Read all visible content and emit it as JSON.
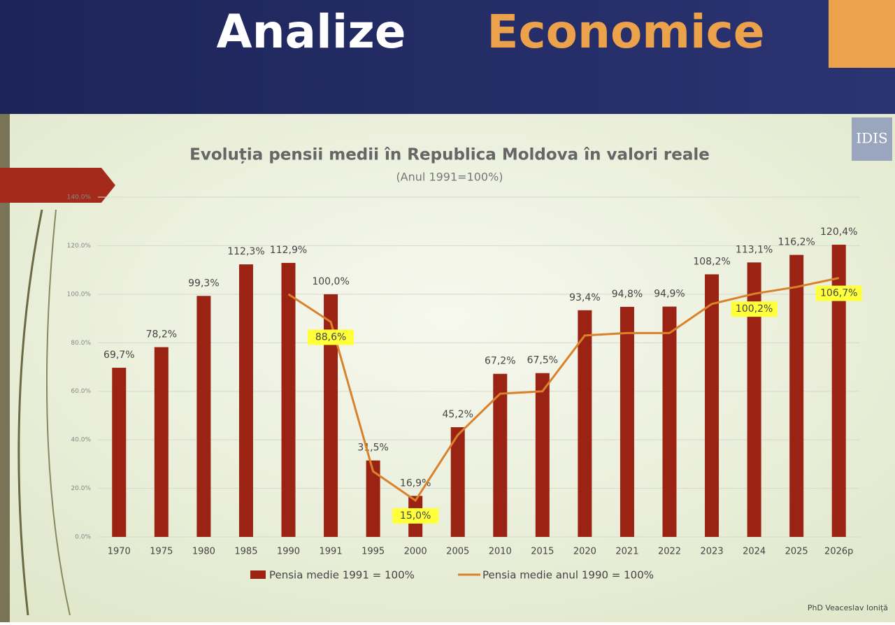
{
  "header": {
    "title_left": "Analize",
    "title_right": "Economice"
  },
  "chart_data": {
    "type": "bar",
    "title": "Evoluția pensii medii în Republica Moldova în valori reale",
    "subtitle": "(Anul 1991=100%)",
    "categories": [
      "1970",
      "1975",
      "1980",
      "1985",
      "1990",
      "1991",
      "1995",
      "2000",
      "2005",
      "2010",
      "2015",
      "2020",
      "2021",
      "2022",
      "2023",
      "2024",
      "2025",
      "2026p"
    ],
    "series": [
      {
        "name": "Pensia medie 1991 = 100%",
        "type": "bar",
        "color": "#9b2314",
        "values": [
          69.7,
          78.2,
          99.3,
          112.3,
          112.9,
          100.0,
          31.5,
          16.9,
          45.2,
          67.2,
          67.5,
          93.4,
          94.8,
          94.9,
          108.2,
          113.1,
          116.2,
          120.4
        ],
        "value_labels": [
          "69,7%",
          "78,2%",
          "99,3%",
          "112,3%",
          "112,9%",
          "100,0%",
          "31,5%",
          "16,9%",
          "45,2%",
          "67,2%",
          "67,5%",
          "93,4%",
          "94,8%",
          "94,9%",
          "108,2%",
          "113,1%",
          "116,2%",
          "120,4%"
        ]
      },
      {
        "name": "Pensia medie anul 1990 = 100%",
        "type": "line",
        "color": "#d9822b",
        "values": [
          null,
          null,
          null,
          null,
          100,
          88.6,
          27,
          15.0,
          42,
          59,
          60,
          83,
          84,
          84,
          96,
          100.2,
          103,
          106.7
        ],
        "value_labels": [
          null,
          null,
          null,
          null,
          null,
          "88,6%",
          null,
          "15,0%",
          null,
          null,
          null,
          null,
          null,
          null,
          null,
          "100,2%",
          null,
          "106,7%"
        ]
      }
    ],
    "ylim": [
      0,
      140
    ],
    "yticks": [
      {
        "value": 0,
        "label": "0.0%"
      },
      {
        "value": 20,
        "label": "20.0%"
      },
      {
        "value": 40,
        "label": "40.0%"
      },
      {
        "value": 60,
        "label": "60.0%"
      },
      {
        "value": 80,
        "label": "80.0%"
      },
      {
        "value": 100,
        "label": "100.0%"
      },
      {
        "value": 120,
        "label": "120.0%"
      },
      {
        "value": 140,
        "label": "140.0%"
      }
    ],
    "grid": true,
    "legend": "bottom"
  },
  "footer": {
    "author": "PhD Veaceslav Ioniță"
  }
}
